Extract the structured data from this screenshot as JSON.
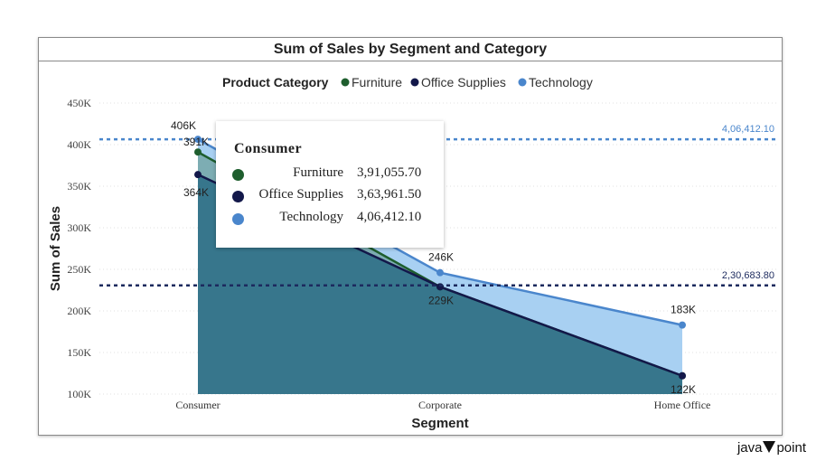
{
  "chart_data": {
    "type": "area",
    "title": "Sum of Sales by Segment and Category",
    "xlabel": "Segment",
    "ylabel": "Sum of Sales",
    "legend_title": "Product Category",
    "legend_position": "top-center",
    "categories": [
      "Consumer",
      "Corporate",
      "Home Office"
    ],
    "ylim": [
      100000,
      450000
    ],
    "yticks": [
      "100K",
      "150K",
      "200K",
      "250K",
      "300K",
      "350K",
      "400K",
      "450K"
    ],
    "grid": true,
    "series": [
      {
        "name": "Furniture",
        "color": "#1e5e2e",
        "values": [
          391055.7,
          229000,
          122000
        ]
      },
      {
        "name": "Office Supplies",
        "color": "#13184a",
        "values": [
          363961.5,
          229000,
          122000
        ]
      },
      {
        "name": "Technology",
        "color": "#4a86cc",
        "values": [
          406412.1,
          246000,
          183000
        ]
      }
    ],
    "point_labels": [
      {
        "series": 2,
        "index": 0,
        "text": "406K"
      },
      {
        "series": 0,
        "index": 0,
        "text": "391K"
      },
      {
        "series": 1,
        "index": 0,
        "text": "364K"
      },
      {
        "series": 2,
        "index": 1,
        "text": "246K"
      },
      {
        "series": 1,
        "index": 1,
        "text": "229K"
      },
      {
        "series": 2,
        "index": 2,
        "text": "183K"
      },
      {
        "series": 1,
        "index": 2,
        "text": "122K"
      }
    ],
    "reference_lines": [
      {
        "value": 406412.1,
        "label": "4,06,412.10",
        "color": "#4a86cc"
      },
      {
        "value": 230683.8,
        "label": "2,30,683.80",
        "color": "#1c2a5e"
      }
    ],
    "tooltip": {
      "title": "Consumer",
      "rows": [
        {
          "name": "Furniture",
          "value": "3,91,055.70",
          "color": "#1e5e2e"
        },
        {
          "name": "Office Supplies",
          "value": "3,63,961.50",
          "color": "#13184a"
        },
        {
          "name": "Technology",
          "value": "4,06,412.10",
          "color": "#4a86cc"
        }
      ]
    }
  },
  "brand": {
    "left": "java",
    "right": "point"
  }
}
